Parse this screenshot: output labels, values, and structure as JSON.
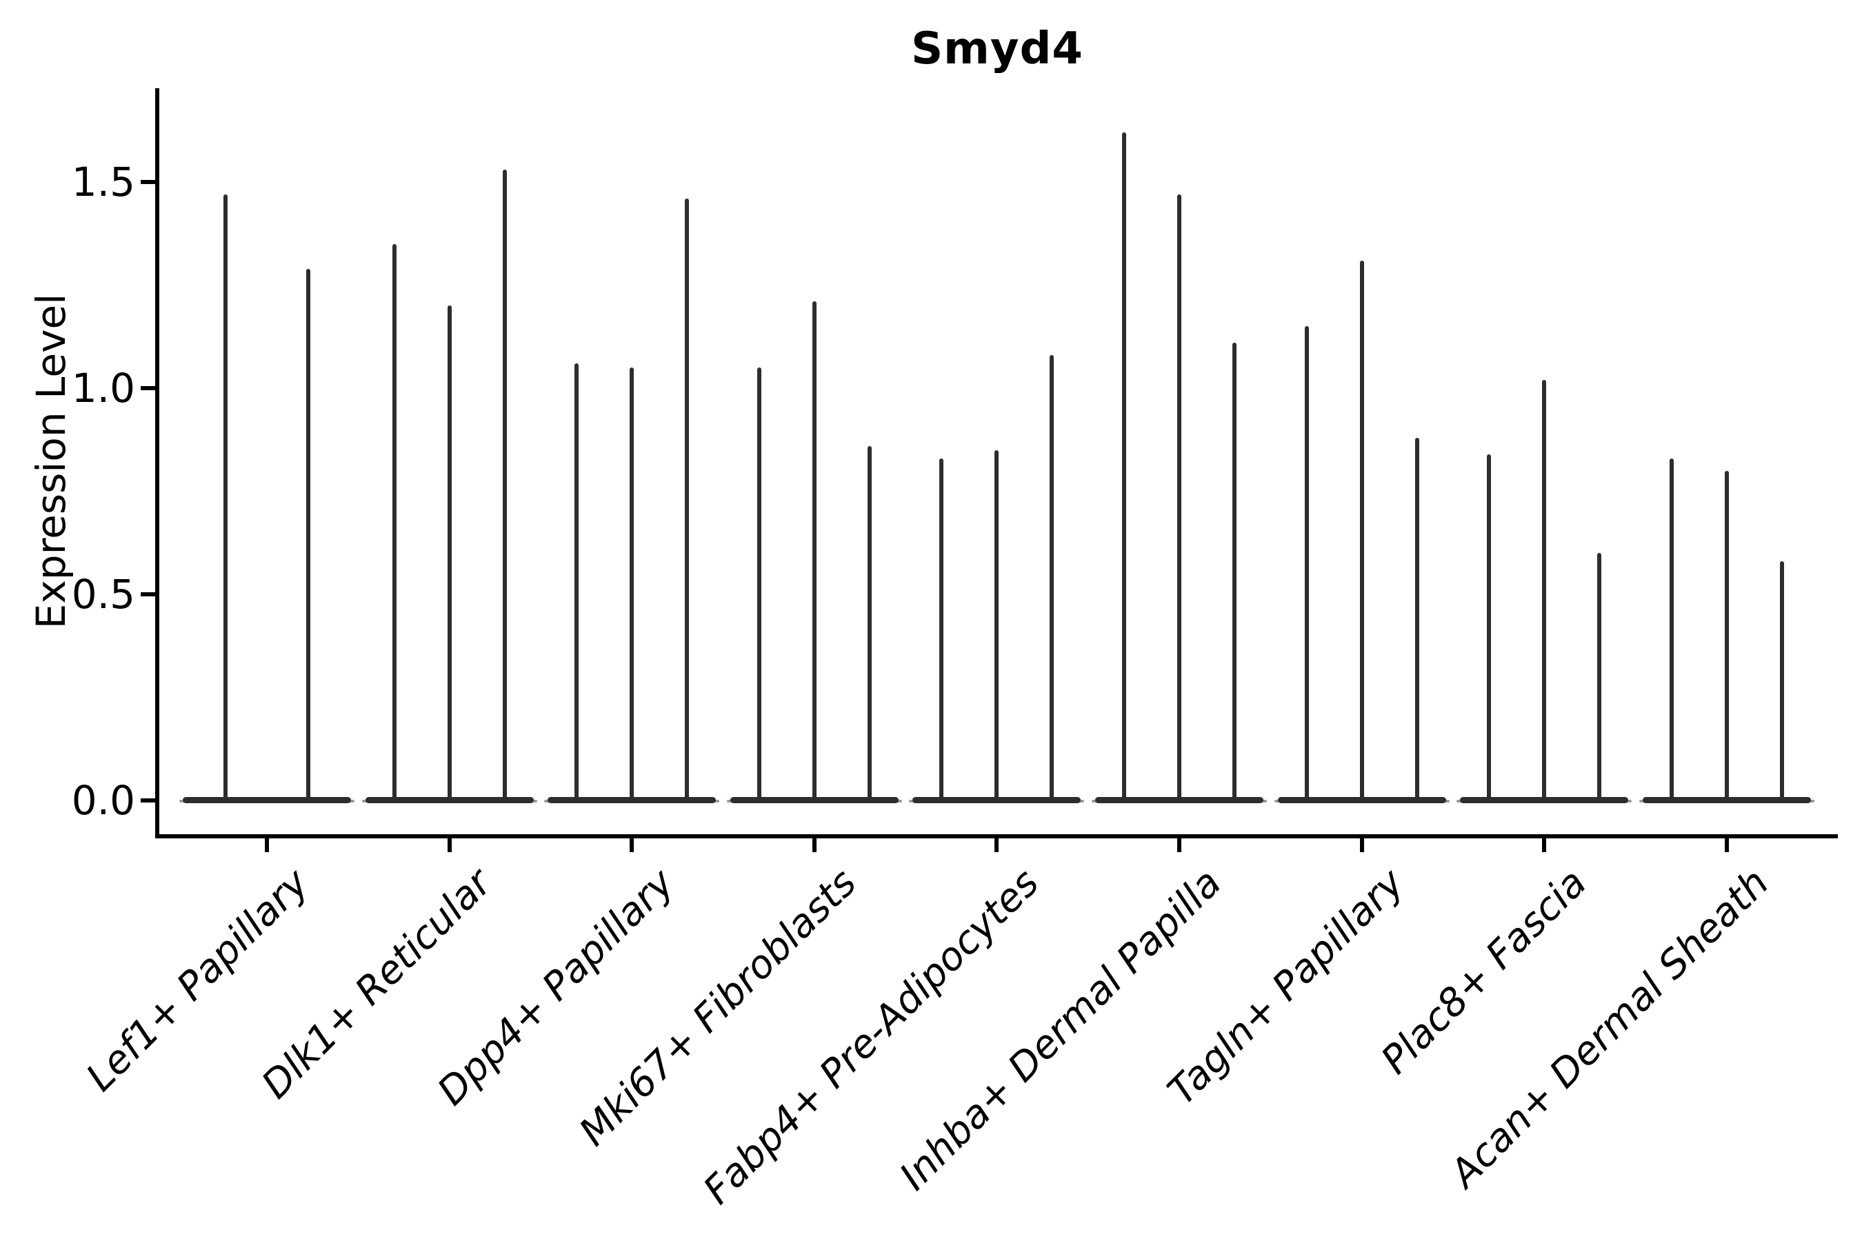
{
  "chart_data": {
    "type": "violin",
    "title": "Smyd4",
    "ylabel": "Expression Level",
    "xlabel": "",
    "ylim": [
      -0.08,
      1.73
    ],
    "grid": false,
    "legend": "none",
    "yticks": [
      {
        "label": "0.0",
        "value": 0.0
      },
      {
        "label": "0.5",
        "value": 0.5
      },
      {
        "label": "1.0",
        "value": 1.0
      },
      {
        "label": "1.5",
        "value": 1.5
      }
    ],
    "categories": [
      "Lef1+ Papillary",
      "Dlk1+ Reticular",
      "Dpp4+ Papillary",
      "Mki67+ Fibroblasts",
      "Fabp4+ Pre-Adipocytes",
      "Inhba+ Dermal Papilla",
      "Tagln+ Papillary",
      "Plac8+ Fascia",
      "Acan+ Dermal Sheath"
    ],
    "violins": [
      {
        "category": "Lef1+ Papillary",
        "baseline": 0.0,
        "spike_maxima": [
          1.47,
          1.29
        ]
      },
      {
        "category": "Dlk1+ Reticular",
        "baseline": 0.0,
        "spike_maxima": [
          1.35,
          1.2,
          1.53
        ]
      },
      {
        "category": "Dpp4+ Papillary",
        "baseline": 0.0,
        "spike_maxima": [
          1.06,
          1.05,
          1.46
        ]
      },
      {
        "category": "Mki67+ Fibroblasts",
        "baseline": 0.0,
        "spike_maxima": [
          1.05,
          1.21,
          0.86
        ]
      },
      {
        "category": "Fabp4+ Pre-Adipocytes",
        "baseline": 0.0,
        "spike_maxima": [
          0.83,
          0.85,
          1.08
        ]
      },
      {
        "category": "Inhba+ Dermal Papilla",
        "baseline": 0.0,
        "spike_maxima": [
          1.62,
          1.47,
          1.11
        ]
      },
      {
        "category": "Tagln+ Papillary",
        "baseline": 0.0,
        "spike_maxima": [
          1.15,
          1.31,
          0.88
        ]
      },
      {
        "category": "Plac8+ Fascia",
        "baseline": 0.0,
        "spike_maxima": [
          0.84,
          1.02,
          0.6
        ]
      },
      {
        "category": "Acan+ Dermal Sheath",
        "baseline": 0.0,
        "spike_maxima": [
          0.83,
          0.8,
          0.58
        ]
      }
    ],
    "style": {
      "violin_color": "#2d2d2d",
      "axis_color": "#000000",
      "background": "#ffffff"
    }
  }
}
